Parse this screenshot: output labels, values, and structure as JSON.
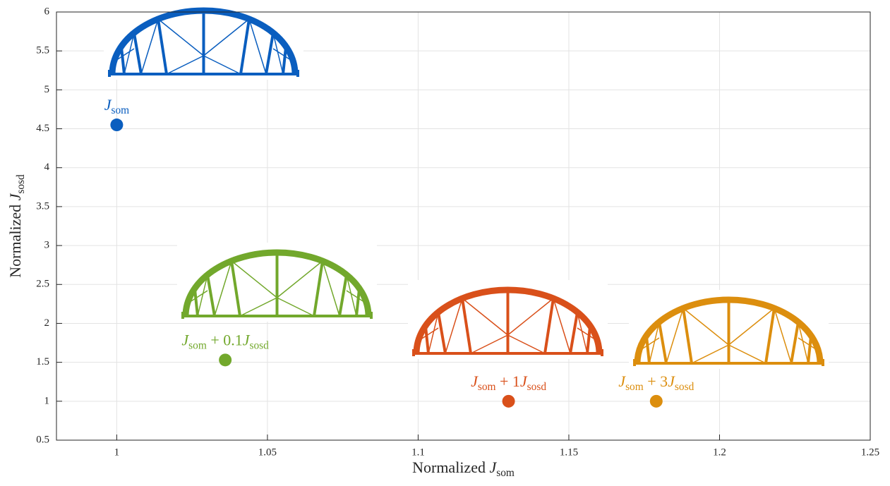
{
  "chart_data": {
    "type": "scatter",
    "x_label": [
      {
        "text": "Normalized "
      },
      {
        "text": "J",
        "italic": true
      },
      {
        "sub": "som"
      }
    ],
    "y_label": [
      {
        "text": "Normalized "
      },
      {
        "text": "J",
        "italic": true
      },
      {
        "sub": "sosd"
      }
    ],
    "xlim": [
      0.98,
      1.25
    ],
    "xticks": [
      1,
      1.05,
      1.1,
      1.15,
      1.2,
      1.25
    ],
    "ylim": [
      0.5,
      6
    ],
    "yticks": [
      0.5,
      1,
      1.5,
      2,
      2.5,
      3,
      3.5,
      4,
      4.5,
      5,
      5.5,
      6
    ],
    "grid": true,
    "series": [
      {
        "label": [
          {
            "text": "J",
            "italic": true
          },
          {
            "sub": "som"
          }
        ],
        "color": "#0a5ebf",
        "x": [
          1
        ],
        "values": [
          4.55
        ]
      },
      {
        "label": [
          {
            "text": "J",
            "italic": true
          },
          {
            "sub": "som"
          },
          {
            "text": " + 0.1"
          },
          {
            "text": "J",
            "italic": true
          },
          {
            "sub": "sosd"
          }
        ],
        "color": "#72a82c",
        "x": [
          1.036
        ],
        "values": [
          1.53
        ]
      },
      {
        "label": [
          {
            "text": "J",
            "italic": true
          },
          {
            "sub": "som"
          },
          {
            "text": " + 1"
          },
          {
            "text": "J",
            "italic": true
          },
          {
            "sub": "sosd"
          }
        ],
        "color": "#d9501a",
        "x": [
          1.13
        ],
        "values": [
          1.0
        ]
      },
      {
        "label": [
          {
            "text": "J",
            "italic": true
          },
          {
            "sub": "som"
          },
          {
            "text": " + 3"
          },
          {
            "text": "J",
            "italic": true
          },
          {
            "sub": "sosd"
          }
        ],
        "color": "#dc8e0e",
        "x": [
          1.179
        ],
        "values": [
          1.0
        ]
      }
    ]
  }
}
